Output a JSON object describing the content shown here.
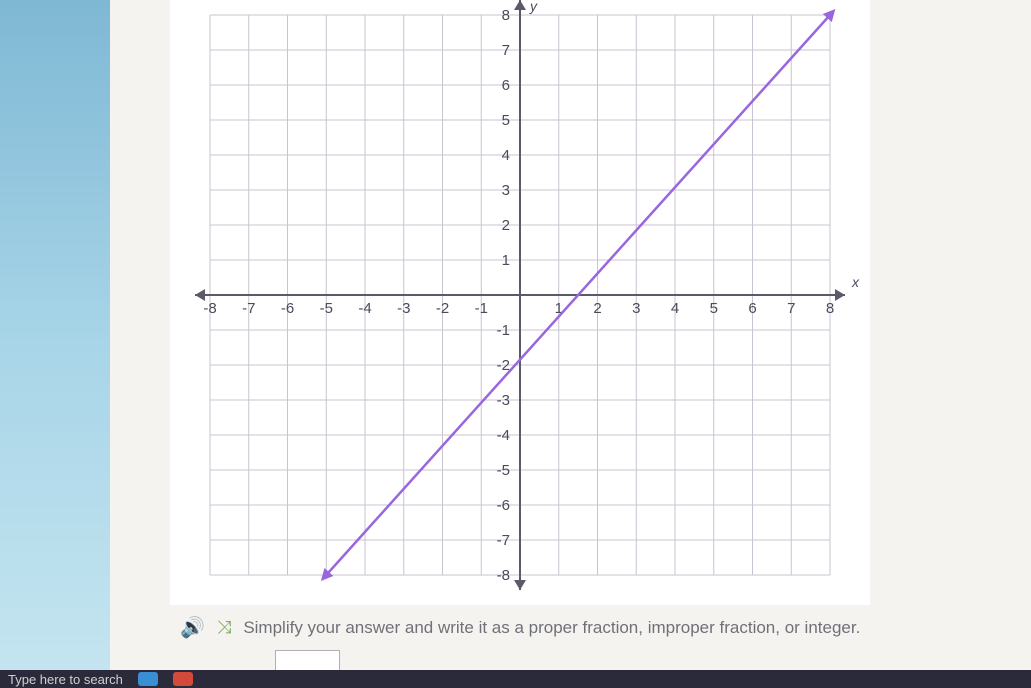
{
  "chart": {
    "type": "line",
    "xlim": [
      -8,
      8
    ],
    "ylim": [
      -8,
      8
    ],
    "tick_step": 1,
    "x_axis_label": "x",
    "y_axis_label": "y",
    "grid_color": "#c8c4d0",
    "axis_color": "#5a5a6a",
    "background_color": "#ffffff",
    "tick_fontsize": 15,
    "line": {
      "color": "#9966dd",
      "width": 2.5,
      "points": [
        [
          -5,
          -8
        ],
        [
          8,
          8
        ]
      ],
      "has_arrows": true
    },
    "x_ticks": [
      -8,
      -7,
      -6,
      -5,
      -4,
      -3,
      -2,
      -1,
      1,
      2,
      3,
      4,
      5,
      6,
      7,
      8
    ],
    "y_ticks": [
      -8,
      -7,
      -6,
      -5,
      -4,
      -3,
      -2,
      -1,
      1,
      2,
      3,
      4,
      5,
      6,
      7,
      8
    ]
  },
  "instruction": {
    "text": "Simplify your answer and write it as a proper fraction, improper fraction, or integer."
  },
  "taskbar": {
    "search_placeholder": "Type here to search"
  }
}
